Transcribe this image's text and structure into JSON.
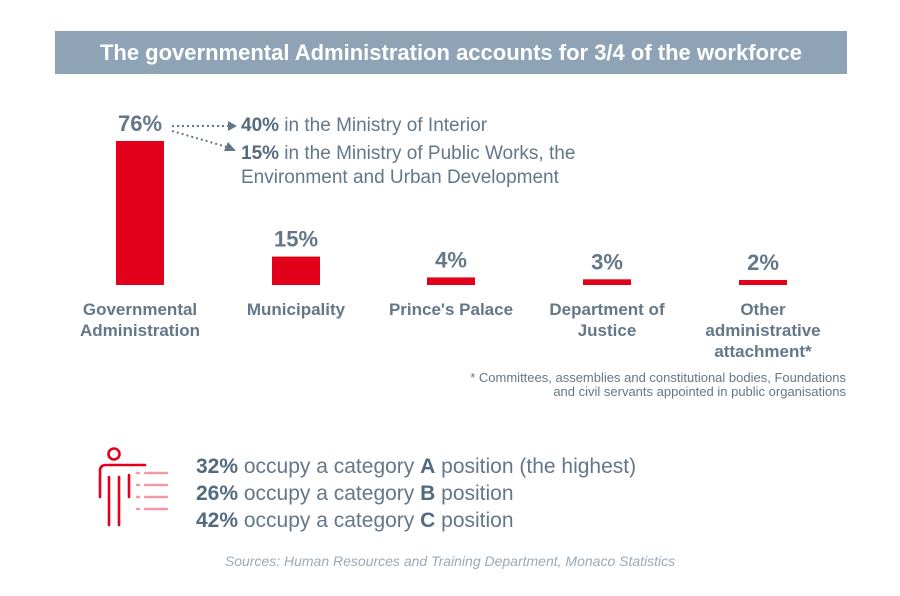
{
  "title": "The governmental Administration accounts for 3/4 of the workforce",
  "chart_data": {
    "type": "bar",
    "categories": [
      "Governmental Administration",
      "Municipality",
      "Prince's Palace",
      "Department of Justice",
      "Other administrative attachment*"
    ],
    "category_lines": [
      [
        "Governmental",
        "Administration"
      ],
      [
        "Municipality"
      ],
      [
        "Prince's Palace"
      ],
      [
        "Department of",
        "Justice"
      ],
      [
        "Other",
        "administrative",
        "attachment*"
      ]
    ],
    "values": [
      76,
      15,
      4,
      3,
      2
    ],
    "value_labels": [
      "76%",
      "15%",
      "4%",
      "3%",
      "2%"
    ],
    "unit": "%",
    "bar_color": "#e2001a"
  },
  "breakdown": [
    {
      "pct": "40%",
      "text": " in the Ministry of Interior"
    },
    {
      "pct": "15%",
      "text": " in the Ministry of Public Works, the",
      "text2": "Environment and Urban Development"
    }
  ],
  "footnote": {
    "line1": "* Committees, assemblies and constitutional bodies, Foundations",
    "line2": "and civil servants appointed in public organisations"
  },
  "categories_stats": [
    {
      "pct": "32%",
      "pre": " occupy a category ",
      "letter": "A",
      "post": " position (the highest)"
    },
    {
      "pct": "26%",
      "pre": " occupy a category ",
      "letter": "B",
      "post": " position"
    },
    {
      "pct": "42%",
      "pre": " occupy a category ",
      "letter": "C",
      "post": " position"
    }
  ],
  "source": "Sources: Human Resources and Training Department, Monaco Statistics",
  "colors": {
    "title_bg": "#8fa3b6",
    "text": "#647789",
    "accent": "#e2001a"
  },
  "icons": [
    "dotted-arrow-icon",
    "person-pointing-icon"
  ]
}
